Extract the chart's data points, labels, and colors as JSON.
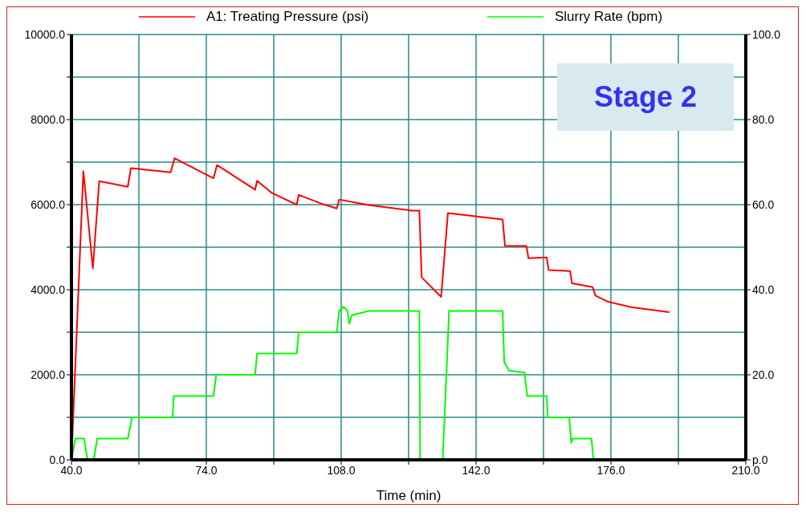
{
  "chart_data": {
    "type": "line",
    "xlabel": "Time (min)",
    "legend": "top",
    "grid": true,
    "xlim": [
      40,
      210
    ],
    "xticks": [
      {
        "value": 40,
        "label": "40.0"
      },
      {
        "value": 57,
        "label": null
      },
      {
        "value": 74,
        "label": "74.0"
      },
      {
        "value": 91,
        "label": null
      },
      {
        "value": 108,
        "label": "108.0"
      },
      {
        "value": 125,
        "label": null
      },
      {
        "value": 142,
        "label": "142.0"
      },
      {
        "value": 159,
        "label": null
      },
      {
        "value": 176,
        "label": "176.0"
      },
      {
        "value": 193,
        "label": null
      },
      {
        "value": 210,
        "label": "210.0"
      }
    ],
    "ylim": [
      0,
      10000
    ],
    "yticks": [
      {
        "value": 0,
        "label": "0.0"
      },
      {
        "value": 1000,
        "label": null
      },
      {
        "value": 2000,
        "label": "2000.0"
      },
      {
        "value": 3000,
        "label": null
      },
      {
        "value": 4000,
        "label": "4000.0"
      },
      {
        "value": 5000,
        "label": null
      },
      {
        "value": 6000,
        "label": "6000.0"
      },
      {
        "value": 7000,
        "label": null
      },
      {
        "value": 8000,
        "label": "8000.0"
      },
      {
        "value": 9000,
        "label": null
      },
      {
        "value": 10000,
        "label": "10000.0"
      }
    ],
    "y2lim": [
      0,
      100
    ],
    "y2ticks": [
      {
        "value": 0,
        "label": "p.0"
      },
      {
        "value": 20,
        "label": "20.0"
      },
      {
        "value": 40,
        "label": "40.0"
      },
      {
        "value": 60,
        "label": "60.0"
      },
      {
        "value": 80,
        "label": "80.0"
      },
      {
        "value": 100,
        "label": "100.0"
      }
    ],
    "annotations": [
      "Stage 2"
    ],
    "series": [
      {
        "name": "A1: Treating Pressure (psi)",
        "color": "#ff0000",
        "x": [
          40,
          43.0,
          45.4,
          47.0,
          54.2,
          55.0,
          65.0,
          66.0,
          75.8,
          76.7,
          86.3,
          86.8,
          90.6,
          96.8,
          97.3,
          103.1,
          106.9,
          107.5,
          114.9,
          125.7,
          127.7,
          128.3,
          133.2,
          134.9,
          148.7,
          149.3,
          154.7,
          155.2,
          159.8,
          160.3,
          165.7,
          166.2,
          171.4,
          172.1,
          175.2,
          181.1,
          190.7
        ],
        "values": [
          0,
          6790,
          4500,
          6550,
          6420,
          6860,
          6760,
          7090,
          6620,
          6930,
          6350,
          6560,
          6270,
          6000,
          6230,
          6020,
          5910,
          6120,
          5990,
          5860,
          5860,
          4290,
          3830,
          5800,
          5650,
          5030,
          5030,
          4740,
          4760,
          4460,
          4440,
          4150,
          4060,
          3860,
          3720,
          3590,
          3470
        ]
      },
      {
        "name": "Slurry Rate (bpm)",
        "color": "#00ff00",
        "axis": "y2",
        "x": [
          40,
          41,
          43.2,
          44,
          45.6,
          46.5,
          54.2,
          55.3,
          65.5,
          65.8,
          75.8,
          76.5,
          86.3,
          86.8,
          96.8,
          97.3,
          106.9,
          107.5,
          108.6,
          109.6,
          110,
          110.7,
          114.9,
          125.7,
          127.7,
          127.9,
          133.6,
          135.2,
          148.7,
          149.1,
          150.3,
          154.2,
          154.9,
          159.8,
          160.1,
          165.5,
          166.0,
          166.4,
          171.1,
          171.6,
          190.7
        ],
        "values": [
          0,
          5,
          5,
          0,
          0,
          5,
          5,
          10,
          10,
          15,
          15,
          20,
          20,
          25,
          25,
          30,
          30,
          35,
          36,
          35,
          32,
          34,
          35,
          35,
          35,
          0,
          0,
          35,
          35,
          23,
          21,
          20.5,
          15,
          15,
          10,
          10,
          4,
          5,
          5,
          0,
          0
        ]
      }
    ]
  }
}
